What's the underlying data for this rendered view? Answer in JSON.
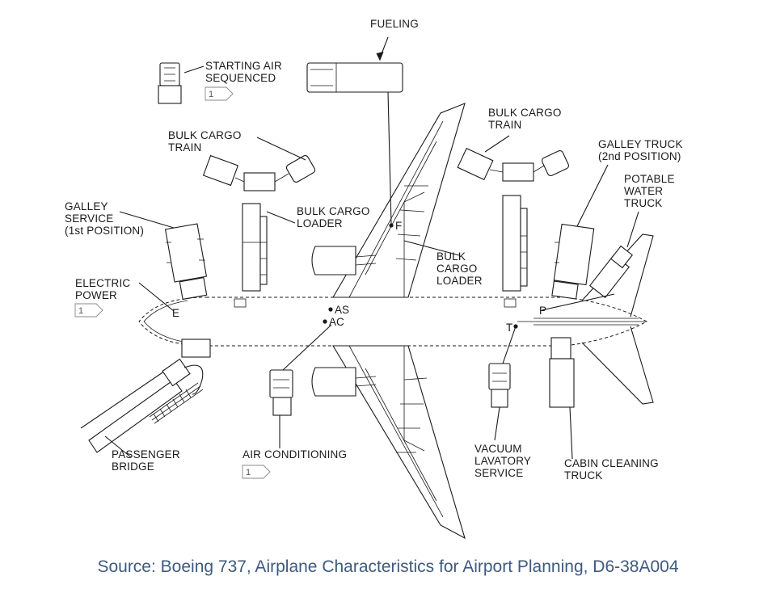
{
  "diagram": {
    "labels": {
      "fueling": "FUELING",
      "starting_air_1": "STARTING AIR",
      "starting_air_2": "SEQUENCED",
      "bulk_train_left_1": "BULK CARGO",
      "bulk_train_left_2": "TRAIN",
      "bulk_train_right_1": "BULK CARGO",
      "bulk_train_right_2": "TRAIN",
      "galley_truck_2nd_1": "GALLEY TRUCK",
      "galley_truck_2nd_2": "(2nd POSITION)",
      "potable_1": "POTABLE",
      "potable_2": "WATER",
      "potable_3": "TRUCK",
      "galley_service_1": "GALLEY",
      "galley_service_2": "SERVICE",
      "galley_service_3": "(1st POSITION)",
      "bulk_loader_left_1": "BULK CARGO",
      "bulk_loader_left_2": "LOADER",
      "bulk_loader_right_1": "BULK",
      "bulk_loader_right_2": "CARGO",
      "bulk_loader_right_3": "LOADER",
      "electric_1": "ELECTRIC",
      "electric_2": "POWER",
      "passenger_1": "PASSENGER",
      "passenger_2": "BRIDGE",
      "air_conditioning": "AIR CONDITIONING",
      "vacuum_1": "VACUUM",
      "vacuum_2": "LAVATORY",
      "vacuum_3": "SERVICE",
      "cabin_1": "CABIN CLEANING",
      "cabin_2": "TRUCK"
    },
    "points": {
      "e": "E",
      "f": "F",
      "as": "AS",
      "ac": "AC",
      "t": "T",
      "p": "P"
    },
    "note_flags": {
      "starting_air": "1",
      "electric_power": "1",
      "air_conditioning": "1"
    }
  },
  "source": "Source: Boeing 737, Airplane Characteristics for Airport Planning, D6-38A004"
}
